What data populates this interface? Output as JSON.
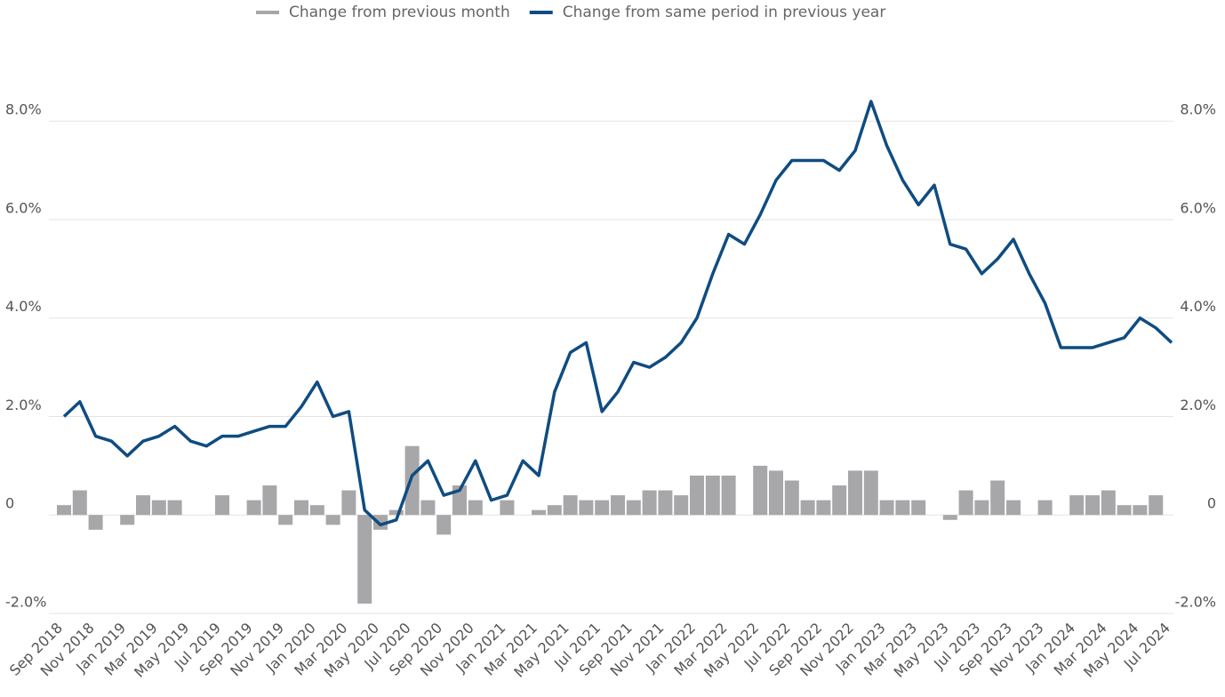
{
  "chart_data": {
    "type": "bar-line",
    "categories": [
      "Sep 2018",
      null,
      "Nov 2018",
      null,
      "Jan 2019",
      null,
      "Mar 2019",
      null,
      "May 2019",
      null,
      "Jul 2019",
      null,
      "Sep 2019",
      null,
      "Nov 2019",
      null,
      "Jan 2020",
      null,
      "Mar 2020",
      null,
      "May 2020",
      null,
      "Jul 2020",
      null,
      "Sep 2020",
      null,
      "Nov 2020",
      null,
      "Jan 2021",
      null,
      "Mar 2021",
      null,
      "May 2021",
      null,
      "Jul 2021",
      null,
      "Sep 2021",
      null,
      "Nov 2021",
      null,
      "Jan 2022",
      null,
      "Mar 2022",
      null,
      "May 2022",
      null,
      "Jul 2022",
      null,
      "Sep 2022",
      null,
      "Nov 2022",
      null,
      "Jan 2023",
      null,
      "Mar 2023",
      null,
      "May 2023",
      null,
      "Jul 2023",
      null,
      "Sep 2023",
      null,
      "Nov 2023",
      null,
      "Jan 2024",
      null,
      "Mar 2024",
      null,
      "May 2024",
      null,
      "Jul 2024"
    ],
    "series": [
      {
        "name": "Change from previous month",
        "color": "#a7a7a9",
        "kind": "bar",
        "values": [
          0.2,
          0.5,
          -0.3,
          0,
          -0.2,
          0.4,
          0.3,
          0.3,
          0,
          0,
          0.4,
          0,
          0.3,
          0.6,
          -0.2,
          0.3,
          0.2,
          -0.2,
          0.5,
          -1.8,
          -0.3,
          0.1,
          1.4,
          0.3,
          -0.4,
          0.6,
          0.3,
          0,
          0.3,
          0,
          0.1,
          0.2,
          0.4,
          0.3,
          0.3,
          0.4,
          0.3,
          0.5,
          0.5,
          0.4,
          0.8,
          0.8,
          0.8,
          0,
          1.0,
          0.9,
          0.7,
          0.3,
          0.3,
          0.6,
          0.9,
          0.9,
          0.3,
          0.3,
          0.3,
          0,
          -0.1,
          0.5,
          0.3,
          0.7,
          0.3,
          0,
          0.3,
          0,
          0.4,
          0.4,
          0.5,
          0.2,
          0.2,
          0.4,
          0
        ]
      },
      {
        "name": "Change from same period in previous year",
        "color": "#0f4c81",
        "kind": "line",
        "axis": "y2",
        "values": [
          2.0,
          2.3,
          1.6,
          1.5,
          1.2,
          1.5,
          1.6,
          1.8,
          1.5,
          1.4,
          1.6,
          1.6,
          1.7,
          1.8,
          1.8,
          2.2,
          2.7,
          2.0,
          2.1,
          0.1,
          -0.2,
          -0.1,
          0.8,
          1.1,
          0.4,
          0.5,
          1.1,
          0.3,
          0.4,
          1.1,
          0.8,
          2.5,
          3.3,
          3.5,
          2.1,
          2.5,
          3.1,
          3.0,
          3.2,
          3.5,
          4.0,
          4.9,
          5.7,
          5.5,
          6.1,
          6.8,
          7.2,
          7.2,
          7.2,
          7.0,
          7.4,
          8.4,
          7.5,
          6.8,
          6.3,
          6.7,
          5.5,
          5.4,
          4.9,
          5.2,
          5.6,
          4.9,
          4.3,
          3.4,
          3.4,
          3.4,
          3.5,
          3.6,
          4.0,
          3.8,
          3.5
        ]
      }
    ],
    "ylim": [
      -2,
      8.6
    ],
    "yticks": [
      {
        "value": -2,
        "label": "-2.0%"
      },
      0,
      {
        "value": 2,
        "label": "2.0%"
      },
      {
        "value": 4,
        "label": "4.0%"
      },
      {
        "value": 6,
        "label": "6.0%"
      },
      {
        "value": 8,
        "label": "8.0%"
      }
    ],
    "y2lim": [
      -2,
      8.6
    ],
    "y2ticks": [
      {
        "value": -2,
        "label": "-2.0%"
      },
      0,
      {
        "value": 2,
        "label": "2.0%"
      },
      {
        "value": 4,
        "label": "4.0%"
      },
      {
        "value": 6,
        "label": "6.0%"
      },
      {
        "value": 8,
        "label": "8.0%"
      }
    ],
    "grid": true,
    "legend": "top"
  }
}
